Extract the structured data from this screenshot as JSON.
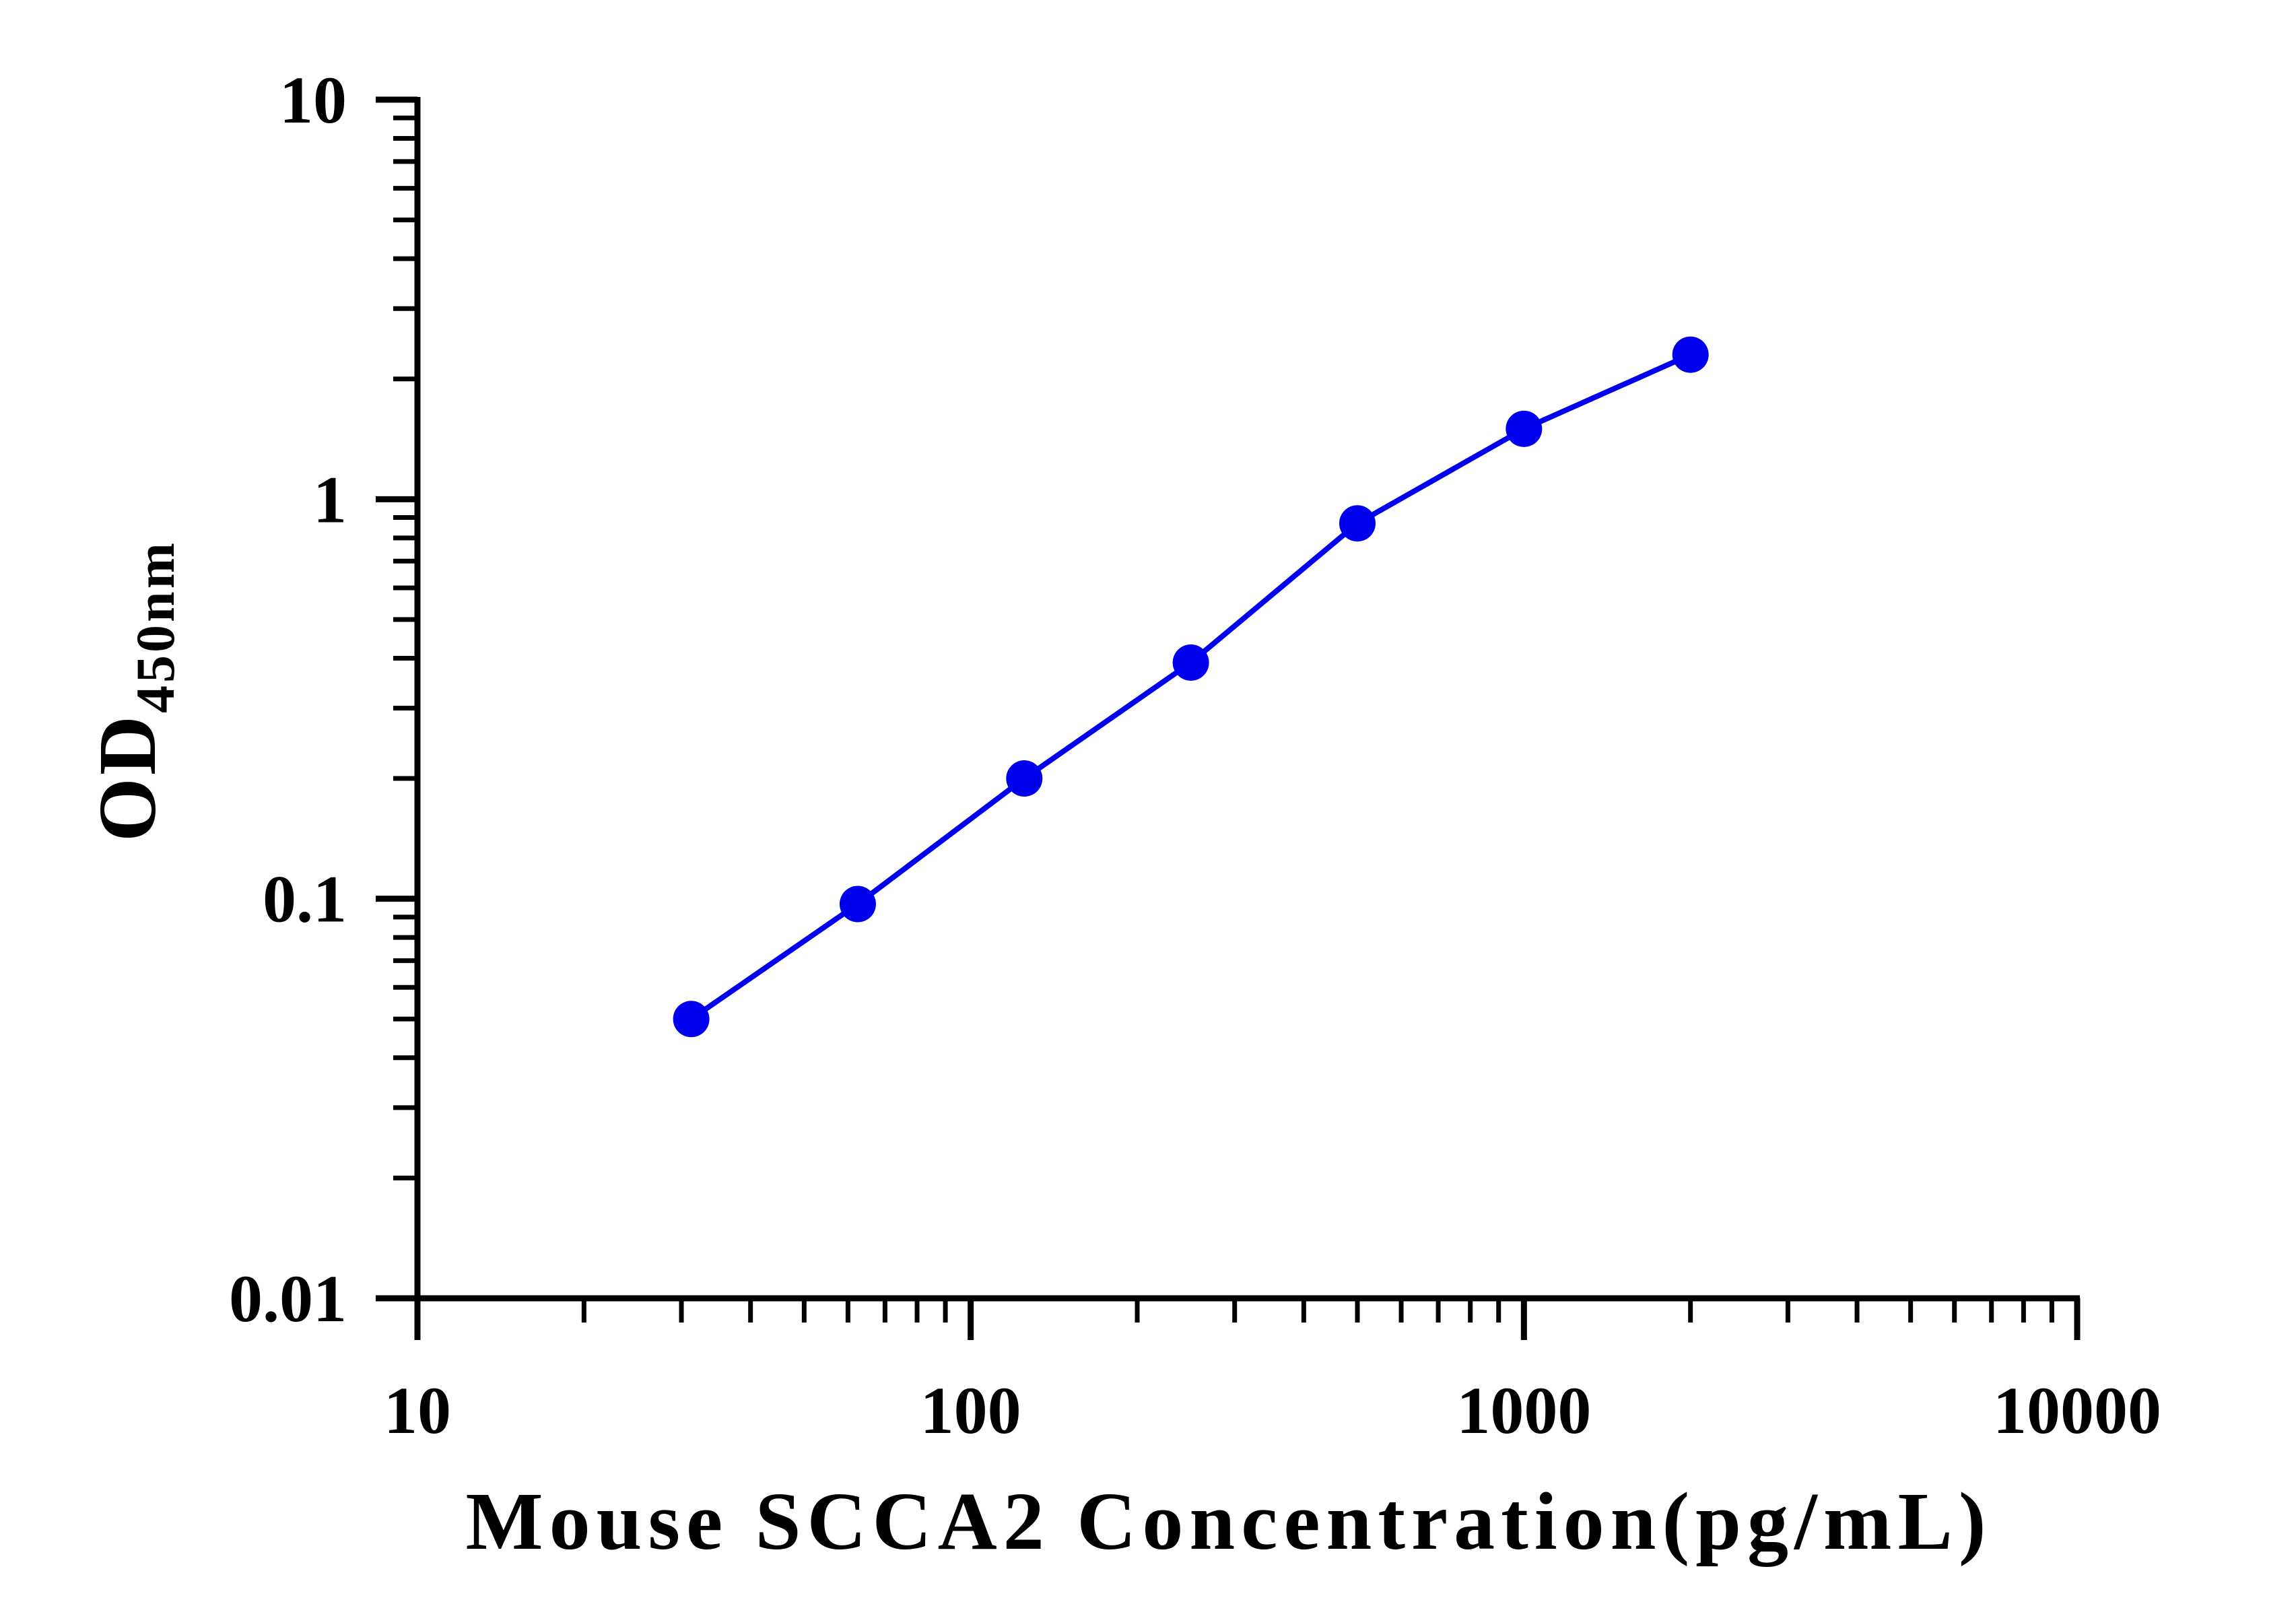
{
  "chart_data": {
    "type": "line",
    "xlabel": "Mouse SCCA2 Concentration(pg/mL)",
    "ylabel_main": "OD",
    "ylabel_sub": "450nm",
    "x_scale": "log",
    "y_scale": "log",
    "xlim": [
      10,
      10000
    ],
    "ylim": [
      0.01,
      10
    ],
    "x_ticks": [
      "10",
      "100",
      "1000",
      "10000"
    ],
    "y_ticks": [
      "0.01",
      "0.1",
      "1",
      "10"
    ],
    "grid": false,
    "series": [
      {
        "color": "#0000ee",
        "x": [
          31.25,
          62.5,
          125,
          250,
          500,
          1000,
          2000
        ],
        "y": [
          0.05,
          0.097,
          0.2,
          0.39,
          0.87,
          1.5,
          2.3
        ]
      }
    ]
  }
}
